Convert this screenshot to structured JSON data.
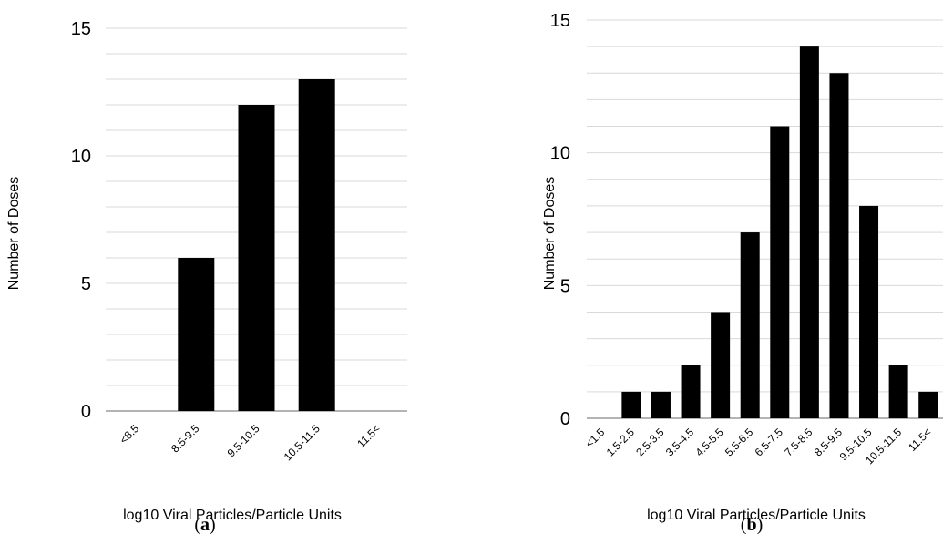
{
  "chart_data": [
    {
      "type": "bar",
      "panel_label": "a",
      "categories": [
        "<8.5",
        "8.5-9.5",
        "9.5-10.5",
        "10.5-11.5",
        "11.5<"
      ],
      "values": [
        0,
        6,
        12,
        13,
        0
      ],
      "xlabel": "log10 Viral Particles/Particle Units",
      "ylabel": "Number of Doses",
      "ylim": [
        0,
        15
      ],
      "yticks": [
        0,
        5,
        10,
        15
      ],
      "minor_grid_step": 1,
      "grid": true,
      "bar_color": "#000000",
      "grid_color": "#d9d9d9"
    },
    {
      "type": "bar",
      "panel_label": "b",
      "categories": [
        "<1.5",
        "1.5-2.5",
        "2.5-3.5",
        "3.5-4.5",
        "4.5-5.5",
        "5.5-6.5",
        "6.5-7.5",
        "7.5-8.5",
        "8.5-9.5",
        "9.5-10.5",
        "10.5-11.5",
        "11.5<"
      ],
      "values": [
        0,
        1,
        1,
        2,
        4,
        7,
        11,
        14,
        13,
        8,
        2,
        1
      ],
      "xlabel": "log10 Viral Particles/Particle Units",
      "ylabel": "Number of Doses",
      "ylim": [
        0,
        15
      ],
      "yticks": [
        0,
        5,
        10,
        15
      ],
      "minor_grid_step": 1,
      "grid": true,
      "bar_color": "#000000",
      "grid_color": "#d9d9d9"
    }
  ]
}
